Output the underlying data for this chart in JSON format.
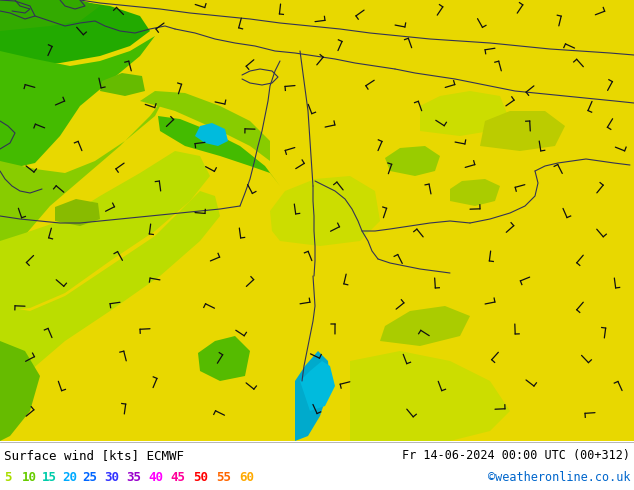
{
  "title_left": "Surface wind [kts] ECMWF",
  "title_right": "Fr 14-06-2024 00:00 UTC (00+312)",
  "credit": "©weatheronline.co.uk",
  "legend_values": [
    "5",
    "10",
    "15",
    "20",
    "25",
    "30",
    "35",
    "40",
    "45",
    "50",
    "55",
    "60"
  ],
  "legend_colors": [
    "#aadd00",
    "#66cc00",
    "#00ccaa",
    "#00aaff",
    "#0066ff",
    "#3333ff",
    "#9900cc",
    "#ff00ff",
    "#ff0099",
    "#ff0000",
    "#ff6600",
    "#ffaa00"
  ],
  "bg_color": "#ffffff",
  "map_yellow": "#e8d800",
  "map_lime": "#aadd00",
  "map_green": "#44bb00",
  "map_dkgreen": "#22aa00",
  "map_cyan": "#00bbdd",
  "map_yelgreen": "#ccdd00",
  "text_color": "#000000",
  "credit_color": "#0066cc",
  "coast_color": "#333355",
  "barb_color": "#111111"
}
